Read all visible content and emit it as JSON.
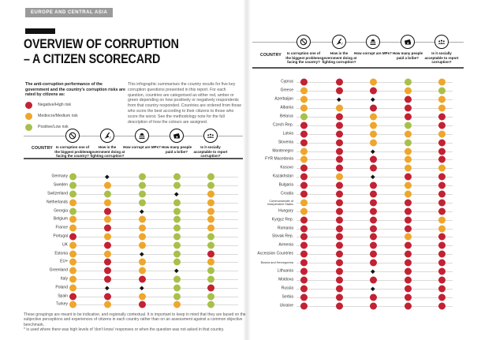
{
  "region_badge": "EUROPE AND CENTRAL ASIA",
  "title": {
    "line1": "OVERVIEW OF CORRUPTION",
    "line2": "– A CITIZEN SCORECARD"
  },
  "legend": {
    "intro": "The anti-corruption performance of the government and the country's corruption risks are rated by citizens as:",
    "items": [
      {
        "label": "Negative/High risk",
        "key": "red"
      },
      {
        "label": "Mediocre/Medium risk",
        "key": "amber"
      },
      {
        "label": "Positive/Low risk",
        "key": "green"
      }
    ]
  },
  "description": "This infographic summarises the country results for five key corruption questions presented in this report. For each question, countries are categorised as either red, amber or green depending on how positively or negatively respondents from that country responded. Countries are ordered from those who score the best according to their citizens to those who score the worst. See the methodology note for the full description of how the colours are assigned.",
  "country_header": "COUNTRY",
  "columns": [
    {
      "icon": "prohibition-icon",
      "label": "Is corruption one of the biggest problems facing the country?"
    },
    {
      "icon": "broom-icon",
      "label": "How is the government doing at fighting corruption?"
    },
    {
      "icon": "parliament-icon",
      "label": "How corrupt are MPs?"
    },
    {
      "icon": "bribe-icon",
      "label": "How many people paid a bribe?"
    },
    {
      "icon": "people-icon",
      "label": "Is it socially acceptable to report corruption?"
    }
  ],
  "colors": {
    "red": "#c22233",
    "amber": "#eea62c",
    "green": "#a8c04a",
    "star": "#141414"
  },
  "footnote_line1": "These groupings are meant to be indicative, and regionally contextual. It is important to keep in mind that they are based on the subjective perceptions and experiences of citizens in each country rather than on an assessment against a common objective benchmark.",
  "footnote_line2": "* is used where there was high levels of 'don't know' responses or when the question was not asked in that country.",
  "chart_data": {
    "type": "heatmap",
    "title": "Overview of Corruption – A Citizen Scorecard",
    "region": "Europe and Central Asia",
    "value_legend": {
      "red": "Negative/High risk",
      "amber": "Mediocre/Medium risk",
      "green": "Positive/Low risk",
      "star": "high levels of 'don't know' responses or question not asked"
    },
    "columns": [
      "Is corruption one of the biggest problems facing the country?",
      "How is the government doing at fighting corruption?",
      "How corrupt are MPs?",
      "How many people paid a bribe?",
      "Is it socially acceptable to report corruption?"
    ],
    "panels": [
      {
        "name": "left-page",
        "rows": [
          {
            "country": "Germany",
            "ratings": [
              "green",
              "star",
              "green",
              "green",
              "green"
            ]
          },
          {
            "country": "Sweden",
            "ratings": [
              "green",
              "amber",
              "green",
              "green",
              "green"
            ]
          },
          {
            "country": "Switzerland",
            "ratings": [
              "green",
              "green",
              "green",
              "star",
              "amber"
            ]
          },
          {
            "country": "Netherlands",
            "ratings": [
              "amber",
              "amber",
              "green",
              "green",
              "amber"
            ]
          },
          {
            "country": "Georgia",
            "ratings": [
              "green",
              "red",
              "star",
              "green",
              "amber"
            ]
          },
          {
            "country": "Belgium",
            "ratings": [
              "amber",
              "amber",
              "amber",
              "green",
              "amber"
            ]
          },
          {
            "country": "France",
            "ratings": [
              "amber",
              "red",
              "amber",
              "green",
              "amber"
            ]
          },
          {
            "country": "Portugal",
            "ratings": [
              "red",
              "amber",
              "amber",
              "green",
              "green"
            ]
          },
          {
            "country": "UK",
            "ratings": [
              "amber",
              "red",
              "amber",
              "green",
              "green"
            ]
          },
          {
            "country": "Estonia",
            "ratings": [
              "amber",
              "amber",
              "star",
              "green",
              "red"
            ]
          },
          {
            "country": "EU+",
            "ratings": [
              "amber",
              "red",
              "amber",
              "green",
              "amber"
            ]
          },
          {
            "country": "Greenland",
            "ratings": [
              "amber",
              "red",
              "amber",
              "star",
              "green"
            ]
          },
          {
            "country": "Italy",
            "ratings": [
              "amber",
              "red",
              "red",
              "green",
              "green"
            ]
          },
          {
            "country": "Poland",
            "ratings": [
              "amber",
              "star",
              "star",
              "green",
              "red"
            ]
          },
          {
            "country": "Spain",
            "ratings": [
              "red",
              "red",
              "amber",
              "green",
              "green"
            ]
          },
          {
            "country": "Turkey",
            "ratings": [
              "amber",
              "amber",
              "red",
              "amber",
              "green"
            ]
          }
        ]
      },
      {
        "name": "right-page",
        "rows": [
          {
            "country": "Cyprus",
            "ratings": [
              "red",
              "red",
              "amber",
              "green",
              "amber"
            ]
          },
          {
            "country": "Greece",
            "ratings": [
              "amber",
              "red",
              "red",
              "amber",
              "green"
            ]
          },
          {
            "country": "Azerbaijan",
            "ratings": [
              "amber",
              "star",
              "star",
              "red",
              "amber"
            ]
          },
          {
            "country": "Albania",
            "ratings": [
              "amber",
              "amber",
              "red",
              "red",
              "amber"
            ]
          },
          {
            "country": "Belarus",
            "ratings": [
              "green",
              "red",
              "amber",
              "red",
              "red"
            ]
          },
          {
            "country": "Czech Rep.",
            "ratings": [
              "red",
              "red",
              "amber",
              "green",
              "red"
            ]
          },
          {
            "country": "Latvia",
            "ratings": [
              "red",
              "red",
              "amber",
              "amber",
              "amber"
            ]
          },
          {
            "country": "Slovenia",
            "ratings": [
              "red",
              "red",
              "amber",
              "green",
              "red"
            ]
          },
          {
            "country": "Montenegro",
            "ratings": [
              "amber",
              "red",
              "star",
              "amber",
              "red"
            ]
          },
          {
            "country": "FYR Macedonia",
            "ratings": [
              "amber",
              "red",
              "red",
              "amber",
              "red"
            ]
          },
          {
            "country": "Kosovo",
            "ratings": [
              "red",
              "red",
              "red",
              "amber",
              "amber"
            ]
          },
          {
            "country": "Kazakhstan",
            "ratings": [
              "red",
              "amber",
              "star",
              "red",
              "red"
            ]
          },
          {
            "country": "Bulgaria",
            "ratings": [
              "red",
              "red",
              "red",
              "amber",
              "red"
            ]
          },
          {
            "country": "Croatia",
            "ratings": [
              "red",
              "red",
              "red",
              "amber",
              "red"
            ]
          },
          {
            "country": "Commonwealth of Independent States",
            "ratings": [
              "amber",
              "red",
              "red",
              "red",
              "red"
            ]
          },
          {
            "country": "Hungary",
            "ratings": [
              "amber",
              "red",
              "red",
              "red",
              "red"
            ]
          },
          {
            "country": "Kyrgyz Rep.",
            "ratings": [
              "red",
              "red",
              "red",
              "red",
              "amber"
            ]
          },
          {
            "country": "Romania",
            "ratings": [
              "red",
              "red",
              "red",
              "red",
              "amber"
            ]
          },
          {
            "country": "Slovak Rep.",
            "ratings": [
              "red",
              "red",
              "red",
              "amber",
              "red"
            ]
          },
          {
            "country": "Armenia",
            "ratings": [
              "red",
              "red",
              "red",
              "red",
              "red"
            ]
          },
          {
            "country": "Accession Countries",
            "ratings": [
              "red",
              "red",
              "red",
              "red",
              "red"
            ]
          },
          {
            "country": "Bosnia and Herzegovina",
            "ratings": [
              "red",
              "red",
              "red",
              "red",
              "red"
            ]
          },
          {
            "country": "Lithuania",
            "ratings": [
              "red",
              "red",
              "star",
              "red",
              "red"
            ]
          },
          {
            "country": "Moldova",
            "ratings": [
              "red",
              "red",
              "red",
              "red",
              "red"
            ]
          },
          {
            "country": "Russia",
            "ratings": [
              "red",
              "red",
              "star",
              "red",
              "red"
            ]
          },
          {
            "country": "Serbia",
            "ratings": [
              "red",
              "red",
              "red",
              "red",
              "red"
            ]
          },
          {
            "country": "Ukraine",
            "ratings": [
              "red",
              "red",
              "red",
              "red",
              "red"
            ]
          }
        ]
      }
    ]
  }
}
